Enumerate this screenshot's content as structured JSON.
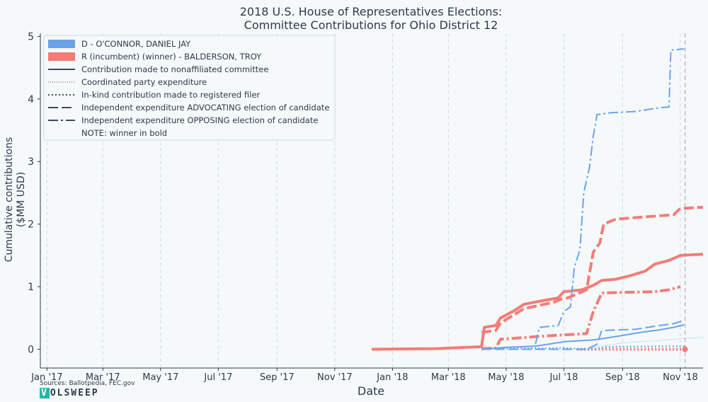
{
  "chart_data": {
    "type": "line",
    "title": "2018 U.S. House of Representatives Elections:",
    "subtitle": "Committee Contributions for Ohio District 12",
    "xlabel": "Date",
    "ylabel": "Cumulative contributions",
    "ylabel2": "($MM USD)",
    "ylim": [
      -0.3,
      5.05
    ],
    "yticks": [
      0,
      1,
      2,
      3,
      4,
      5
    ],
    "xlim": [
      "2016-12-25",
      "2018-11-25"
    ],
    "xticks": [
      {
        "date": "2017-01-01",
        "label": "Jan '17"
      },
      {
        "date": "2017-03-01",
        "label": "Mar '17"
      },
      {
        "date": "2017-05-01",
        "label": "May '17"
      },
      {
        "date": "2017-07-01",
        "label": "Jul '17"
      },
      {
        "date": "2017-09-01",
        "label": "Sep '17"
      },
      {
        "date": "2017-11-01",
        "label": "Nov '17"
      },
      {
        "date": "2018-01-01",
        "label": "Jan '18"
      },
      {
        "date": "2018-03-01",
        "label": "Mar '18"
      },
      {
        "date": "2018-05-01",
        "label": "May '18"
      },
      {
        "date": "2018-07-01",
        "label": "Jul '18"
      },
      {
        "date": "2018-09-01",
        "label": "Sep '18"
      },
      {
        "date": "2018-11-01",
        "label": "Nov '18"
      }
    ],
    "grid": "vertical",
    "event_line_date": "2018-11-06",
    "colors": {
      "D": "#6aa3ea",
      "R": "#f47c78",
      "grid": "#cfdde3",
      "event": "#bbbbbb"
    },
    "legend": {
      "position": "top-left",
      "entries": [
        {
          "label": "D - O'CONNOR, DANIEL JAY",
          "kind": "patch",
          "color": "#6aa3ea"
        },
        {
          "label": "R (incumbent) (winner) - BALDERSON, TROY",
          "kind": "patch",
          "color": "#f47c78"
        },
        {
          "label": "Contribution made to nonaffiliated committee",
          "kind": "solid"
        },
        {
          "label": "Coordinated party expenditure",
          "kind": "thin-dotted"
        },
        {
          "label": "In-kind contribution made to registered filer",
          "kind": "dotted"
        },
        {
          "label": "Independent expenditure ADVOCATING election of candidate",
          "kind": "dashed"
        },
        {
          "label": "Independent expenditure OPPOSING election of candidate",
          "kind": "dashdot"
        },
        {
          "label": "NOTE: winner in bold",
          "kind": "none"
        }
      ]
    },
    "series": [
      {
        "party": "R",
        "style": "solid",
        "bold": true,
        "points": [
          [
            "2017-12-10",
            0.0
          ],
          [
            "2018-02-15",
            0.01
          ],
          [
            "2018-04-05",
            0.04
          ],
          [
            "2018-04-08",
            0.35
          ],
          [
            "2018-04-20",
            0.38
          ],
          [
            "2018-04-25",
            0.5
          ],
          [
            "2018-05-10",
            0.62
          ],
          [
            "2018-05-20",
            0.72
          ],
          [
            "2018-06-10",
            0.78
          ],
          [
            "2018-06-25",
            0.82
          ],
          [
            "2018-07-01",
            0.92
          ],
          [
            "2018-07-20",
            0.95
          ],
          [
            "2018-08-01",
            1.02
          ],
          [
            "2018-08-10",
            1.1
          ],
          [
            "2018-08-25",
            1.12
          ],
          [
            "2018-09-10",
            1.18
          ],
          [
            "2018-09-25",
            1.25
          ],
          [
            "2018-10-05",
            1.36
          ],
          [
            "2018-10-20",
            1.42
          ],
          [
            "2018-11-01",
            1.5
          ],
          [
            "2018-11-25",
            1.52
          ]
        ]
      },
      {
        "party": "R",
        "style": "dashed",
        "bold": true,
        "points": [
          [
            "2018-04-05",
            0.27
          ],
          [
            "2018-04-20",
            0.3
          ],
          [
            "2018-04-25",
            0.42
          ],
          [
            "2018-05-20",
            0.65
          ],
          [
            "2018-06-20",
            0.75
          ],
          [
            "2018-06-28",
            0.8
          ],
          [
            "2018-07-05",
            0.82
          ],
          [
            "2018-07-25",
            0.95
          ],
          [
            "2018-08-01",
            1.55
          ],
          [
            "2018-08-08",
            1.7
          ],
          [
            "2018-08-12",
            2.0
          ],
          [
            "2018-08-25",
            2.08
          ],
          [
            "2018-10-25",
            2.15
          ],
          [
            "2018-11-01",
            2.25
          ],
          [
            "2018-11-25",
            2.27
          ]
        ]
      },
      {
        "party": "R",
        "style": "dashdot",
        "bold": true,
        "points": [
          [
            "2018-04-05",
            0.01
          ],
          [
            "2018-04-20",
            0.02
          ],
          [
            "2018-04-25",
            0.16
          ],
          [
            "2018-06-20",
            0.22
          ],
          [
            "2018-07-25",
            0.25
          ],
          [
            "2018-08-01",
            0.6
          ],
          [
            "2018-08-10",
            0.9
          ],
          [
            "2018-10-05",
            0.92
          ],
          [
            "2018-10-20",
            0.95
          ],
          [
            "2018-11-01",
            1.0
          ]
        ]
      },
      {
        "party": "R",
        "style": "dotted",
        "bold": true,
        "points": [
          [
            "2018-07-15",
            0.0
          ],
          [
            "2018-11-03",
            0.0
          ]
        ]
      },
      {
        "party": "D",
        "style": "solid",
        "bold": false,
        "points": [
          [
            "2018-04-05",
            0.0
          ],
          [
            "2018-05-01",
            0.03
          ],
          [
            "2018-06-01",
            0.05
          ],
          [
            "2018-07-01",
            0.12
          ],
          [
            "2018-08-01",
            0.15
          ],
          [
            "2018-08-15",
            0.18
          ],
          [
            "2018-09-01",
            0.22
          ],
          [
            "2018-09-20",
            0.27
          ],
          [
            "2018-10-10",
            0.31
          ],
          [
            "2018-10-25",
            0.35
          ],
          [
            "2018-11-05",
            0.39
          ]
        ]
      },
      {
        "party": "D",
        "style": "dashed",
        "bold": false,
        "points": [
          [
            "2018-04-05",
            0.0
          ],
          [
            "2018-07-25",
            0.0
          ],
          [
            "2018-08-05",
            0.08
          ],
          [
            "2018-08-10",
            0.3
          ],
          [
            "2018-09-15",
            0.32
          ],
          [
            "2018-10-10",
            0.38
          ],
          [
            "2018-10-25",
            0.41
          ],
          [
            "2018-11-05",
            0.46
          ]
        ]
      },
      {
        "party": "D",
        "style": "dashdot",
        "bold": false,
        "points": [
          [
            "2018-06-01",
            0.08
          ],
          [
            "2018-06-05",
            0.35
          ],
          [
            "2018-06-25",
            0.38
          ],
          [
            "2018-07-01",
            0.6
          ],
          [
            "2018-07-08",
            0.68
          ],
          [
            "2018-07-12",
            1.3
          ],
          [
            "2018-07-18",
            1.6
          ],
          [
            "2018-07-22",
            2.5
          ],
          [
            "2018-07-28",
            2.9
          ],
          [
            "2018-08-01",
            3.4
          ],
          [
            "2018-08-05",
            3.75
          ],
          [
            "2018-08-20",
            3.78
          ],
          [
            "2018-09-15",
            3.8
          ],
          [
            "2018-10-10",
            3.86
          ],
          [
            "2018-10-20",
            3.87
          ],
          [
            "2018-10-22",
            4.78
          ],
          [
            "2018-11-05",
            4.8
          ]
        ]
      },
      {
        "party": "D",
        "style": "dotted",
        "bold": false,
        "points": [
          [
            "2018-04-05",
            0.01
          ],
          [
            "2018-07-01",
            0.02
          ],
          [
            "2018-08-01",
            0.0
          ],
          [
            "2018-08-15",
            0.04
          ],
          [
            "2018-11-05",
            0.05
          ]
        ]
      },
      {
        "party": "D",
        "style": "thin-dotted",
        "bold": false,
        "points": [
          [
            "2018-07-25",
            0.0
          ],
          [
            "2018-08-05",
            0.04
          ],
          [
            "2018-09-01",
            0.1
          ],
          [
            "2018-10-10",
            0.14
          ],
          [
            "2018-11-01",
            0.17
          ],
          [
            "2018-11-25",
            0.19
          ]
        ]
      }
    ],
    "markers": [
      {
        "party": "R",
        "date": "2018-11-06",
        "value": 0.0
      }
    ],
    "source_note": "Sources: Ballotpedia, FEC.gov",
    "brand": "OLSWEEP",
    "brand_initial": "V"
  }
}
